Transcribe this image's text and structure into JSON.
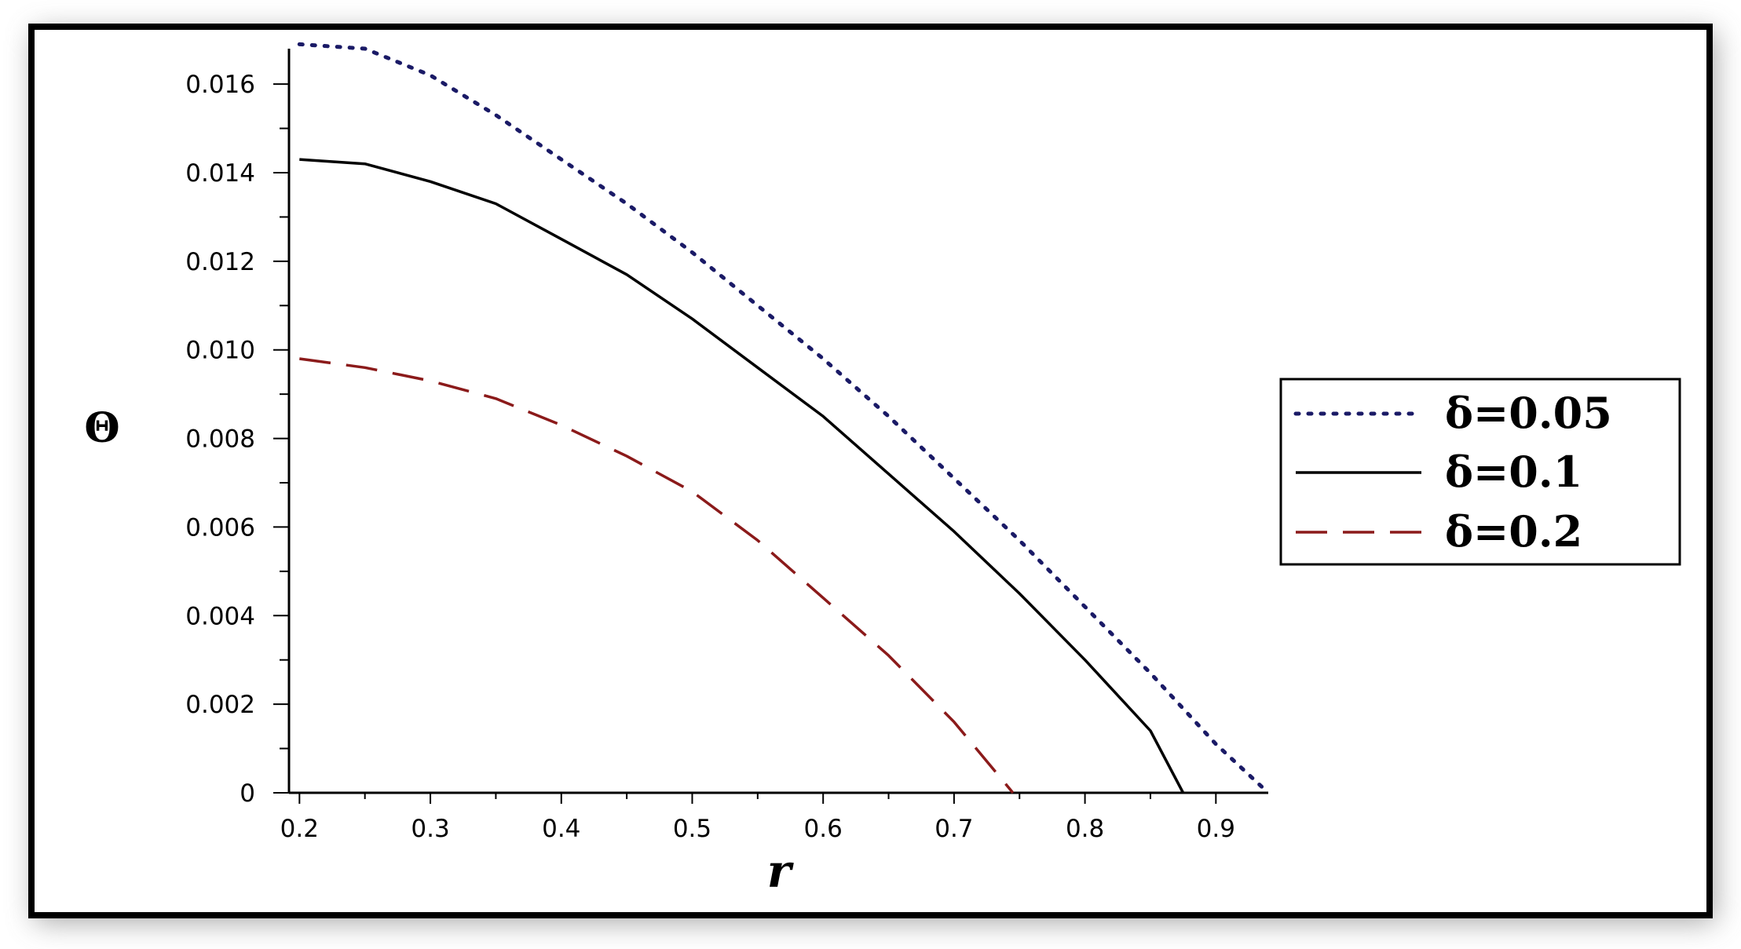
{
  "chart_data": {
    "type": "line",
    "title": "",
    "xlabel": "r",
    "ylabel": "Θ",
    "xlim": [
      0.192,
      0.94
    ],
    "ylim": [
      0,
      0.0168
    ],
    "x_ticks": [
      "0.2",
      "0.3",
      "0.4",
      "0.5",
      "0.6",
      "0.7",
      "0.8",
      "0.9"
    ],
    "y_ticks": [
      "0",
      "0.002",
      "0.004",
      "0.006",
      "0.008",
      "0.010",
      "0.012",
      "0.014",
      "0.016"
    ],
    "grid": false,
    "legend_position": "right",
    "series": [
      {
        "name": "δ=0.05",
        "style": "dotted",
        "color": "#1a1a66",
        "points": [
          [
            0.2,
            0.0169
          ],
          [
            0.25,
            0.0168
          ],
          [
            0.3,
            0.0162
          ],
          [
            0.35,
            0.0153
          ],
          [
            0.4,
            0.0143
          ],
          [
            0.45,
            0.0133
          ],
          [
            0.5,
            0.0122
          ],
          [
            0.55,
            0.011
          ],
          [
            0.6,
            0.0098
          ],
          [
            0.65,
            0.0085
          ],
          [
            0.7,
            0.0071
          ],
          [
            0.75,
            0.0057
          ],
          [
            0.8,
            0.0042
          ],
          [
            0.85,
            0.0027
          ],
          [
            0.9,
            0.0011
          ],
          [
            0.94,
            0.0
          ]
        ]
      },
      {
        "name": "δ=0.1",
        "style": "solid",
        "color": "#000000",
        "points": [
          [
            0.2,
            0.0143
          ],
          [
            0.25,
            0.0142
          ],
          [
            0.3,
            0.0138
          ],
          [
            0.35,
            0.0133
          ],
          [
            0.4,
            0.0125
          ],
          [
            0.45,
            0.0117
          ],
          [
            0.5,
            0.0107
          ],
          [
            0.55,
            0.0096
          ],
          [
            0.6,
            0.0085
          ],
          [
            0.65,
            0.0072
          ],
          [
            0.7,
            0.0059
          ],
          [
            0.75,
            0.0045
          ],
          [
            0.8,
            0.003
          ],
          [
            0.85,
            0.0014
          ],
          [
            0.875,
            0.0
          ]
        ]
      },
      {
        "name": "δ=0.2",
        "style": "dashed",
        "color": "#8b1a1a",
        "points": [
          [
            0.2,
            0.0098
          ],
          [
            0.25,
            0.0096
          ],
          [
            0.3,
            0.0093
          ],
          [
            0.35,
            0.0089
          ],
          [
            0.4,
            0.0083
          ],
          [
            0.45,
            0.0076
          ],
          [
            0.5,
            0.0068
          ],
          [
            0.55,
            0.0057
          ],
          [
            0.6,
            0.0044
          ],
          [
            0.65,
            0.0031
          ],
          [
            0.7,
            0.0016
          ],
          [
            0.745,
            0.0
          ]
        ]
      }
    ]
  }
}
